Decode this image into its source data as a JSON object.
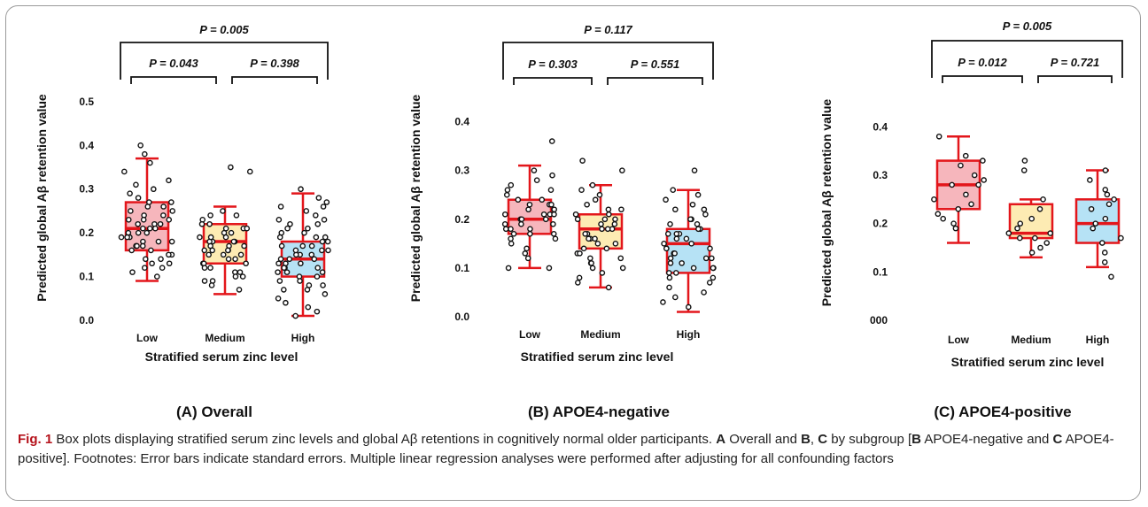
{
  "chart_data": [
    {
      "type": "boxplot",
      "subtitle": "(A) Overall",
      "ylabel": "Predicted global Aβ retention value",
      "xlabel": "Stratified serum zinc level",
      "categories": [
        "Low",
        "Medium",
        "High"
      ],
      "y_ticks": [
        "0.0",
        "0.1",
        "0.2",
        "0.3",
        "0.4",
        "0.5"
      ],
      "ylim": [
        0,
        0.52
      ],
      "boxes": [
        {
          "whisker_low": 0.09,
          "q1": 0.16,
          "median": 0.21,
          "q3": 0.27,
          "whisker_high": 0.37,
          "color": "#f5a9b0"
        },
        {
          "whisker_low": 0.06,
          "q1": 0.13,
          "median": 0.18,
          "q3": 0.22,
          "whisker_high": 0.26,
          "color": "#fde7a6"
        },
        {
          "whisker_low": 0.01,
          "q1": 0.1,
          "median": 0.14,
          "q3": 0.18,
          "whisker_high": 0.29,
          "color": "#a9ddf3"
        }
      ],
      "comparisons": [
        {
          "from": 0,
          "to": 2,
          "label": "P = 0.005",
          "level": "outer"
        },
        {
          "from": 0,
          "to": 1,
          "label": "P = 0.043",
          "level": "inner"
        },
        {
          "from": 1,
          "to": 2,
          "label": "P = 0.398",
          "level": "inner"
        }
      ],
      "points": [
        [
          0.32,
          0.34,
          0.36,
          0.4,
          0.38,
          0.3,
          0.29,
          0.28,
          0.27,
          0.27,
          0.26,
          0.25,
          0.25,
          0.24,
          0.24,
          0.23,
          0.23,
          0.22,
          0.22,
          0.22,
          0.21,
          0.21,
          0.21,
          0.2,
          0.2,
          0.2,
          0.19,
          0.19,
          0.18,
          0.18,
          0.18,
          0.17,
          0.17,
          0.16,
          0.16,
          0.15,
          0.15,
          0.14,
          0.14,
          0.13,
          0.13,
          0.12,
          0.11,
          0.1,
          0.12,
          0.31,
          0.26,
          0.23,
          0.19,
          0.17
        ],
        [
          0.34,
          0.35,
          0.25,
          0.24,
          0.23,
          0.22,
          0.22,
          0.21,
          0.21,
          0.2,
          0.2,
          0.19,
          0.19,
          0.19,
          0.18,
          0.18,
          0.18,
          0.17,
          0.17,
          0.17,
          0.16,
          0.16,
          0.16,
          0.15,
          0.15,
          0.14,
          0.14,
          0.13,
          0.13,
          0.12,
          0.12,
          0.11,
          0.11,
          0.1,
          0.1,
          0.09,
          0.09,
          0.08,
          0.07,
          0.21,
          0.18,
          0.15,
          0.13,
          0.24,
          0.16
        ],
        [
          0.3,
          0.28,
          0.27,
          0.26,
          0.25,
          0.24,
          0.23,
          0.22,
          0.22,
          0.21,
          0.21,
          0.2,
          0.2,
          0.19,
          0.19,
          0.18,
          0.18,
          0.17,
          0.17,
          0.16,
          0.16,
          0.15,
          0.15,
          0.14,
          0.14,
          0.13,
          0.13,
          0.12,
          0.12,
          0.11,
          0.11,
          0.1,
          0.1,
          0.09,
          0.09,
          0.08,
          0.08,
          0.07,
          0.07,
          0.06,
          0.05,
          0.04,
          0.03,
          0.02,
          0.01,
          0.19,
          0.17,
          0.15,
          0.13,
          0.11,
          0.23,
          0.26,
          0.12,
          0.14,
          0.16
        ]
      ]
    },
    {
      "type": "boxplot",
      "subtitle": "(B) APOE4-negative",
      "ylabel": "Predicted global Aβ retention value",
      "xlabel": "Stratified serum zinc level",
      "categories": [
        "Low",
        "Medium",
        "High"
      ],
      "y_ticks": [
        "0.0",
        "0.1",
        "0.2",
        "0.3",
        "0.4"
      ],
      "ylim": [
        0,
        0.45
      ],
      "boxes": [
        {
          "whisker_low": 0.1,
          "q1": 0.17,
          "median": 0.2,
          "q3": 0.24,
          "whisker_high": 0.31,
          "color": "#f5a9b0"
        },
        {
          "whisker_low": 0.06,
          "q1": 0.14,
          "median": 0.18,
          "q3": 0.21,
          "whisker_high": 0.27,
          "color": "#fde7a6"
        },
        {
          "whisker_low": 0.01,
          "q1": 0.09,
          "median": 0.15,
          "q3": 0.18,
          "whisker_high": 0.26,
          "color": "#a9ddf3"
        }
      ],
      "comparisons": [
        {
          "from": 0,
          "to": 2,
          "label": "P = 0.117",
          "level": "outer"
        },
        {
          "from": 0,
          "to": 1,
          "label": "P = 0.303",
          "level": "inner"
        },
        {
          "from": 1,
          "to": 2,
          "label": "P = 0.551",
          "level": "inner"
        }
      ],
      "points": [
        [
          0.36,
          0.3,
          0.28,
          0.27,
          0.26,
          0.25,
          0.24,
          0.24,
          0.23,
          0.23,
          0.22,
          0.22,
          0.21,
          0.21,
          0.21,
          0.2,
          0.2,
          0.2,
          0.19,
          0.19,
          0.18,
          0.18,
          0.18,
          0.17,
          0.17,
          0.16,
          0.16,
          0.15,
          0.14,
          0.13,
          0.12,
          0.1,
          0.1,
          0.29,
          0.26,
          0.22,
          0.19,
          0.17,
          0.23,
          0.21
        ],
        [
          0.32,
          0.3,
          0.27,
          0.26,
          0.25,
          0.24,
          0.23,
          0.22,
          0.22,
          0.21,
          0.21,
          0.2,
          0.2,
          0.19,
          0.19,
          0.18,
          0.18,
          0.17,
          0.17,
          0.16,
          0.16,
          0.15,
          0.15,
          0.14,
          0.14,
          0.13,
          0.12,
          0.12,
          0.11,
          0.1,
          0.1,
          0.09,
          0.08,
          0.07,
          0.06,
          0.2,
          0.18,
          0.16,
          0.13,
          0.11
        ],
        [
          0.3,
          0.26,
          0.25,
          0.24,
          0.23,
          0.22,
          0.21,
          0.2,
          0.2,
          0.19,
          0.19,
          0.18,
          0.18,
          0.17,
          0.17,
          0.16,
          0.16,
          0.15,
          0.15,
          0.14,
          0.14,
          0.13,
          0.13,
          0.12,
          0.12,
          0.11,
          0.11,
          0.1,
          0.1,
          0.09,
          0.09,
          0.08,
          0.08,
          0.07,
          0.06,
          0.05,
          0.04,
          0.03,
          0.02,
          0.17,
          0.14,
          0.12,
          0.1,
          0.22
        ]
      ]
    },
    {
      "type": "boxplot",
      "subtitle": "(C) APOE4-positive",
      "ylabel": "Predicted global Aβ retention value",
      "xlabel": "Stratified serum zinc level",
      "categories": [
        "Low",
        "Medium",
        "High"
      ],
      "y_ticks": [
        "000",
        "0.1",
        "0.2",
        "0.3",
        "0.4"
      ],
      "ylim": [
        0,
        0.45
      ],
      "boxes": [
        {
          "whisker_low": 0.16,
          "q1": 0.23,
          "median": 0.28,
          "q3": 0.33,
          "whisker_high": 0.38,
          "color": "#f5a9b0"
        },
        {
          "whisker_low": 0.13,
          "q1": 0.17,
          "median": 0.18,
          "q3": 0.24,
          "whisker_high": 0.25,
          "color": "#fde7a6"
        },
        {
          "whisker_low": 0.11,
          "q1": 0.16,
          "median": 0.2,
          "q3": 0.25,
          "whisker_high": 0.31,
          "color": "#a9ddf3"
        }
      ],
      "comparisons": [
        {
          "from": 0,
          "to": 2,
          "label": "P = 0.005",
          "level": "outer"
        },
        {
          "from": 0,
          "to": 1,
          "label": "P = 0.012",
          "level": "inner"
        },
        {
          "from": 1,
          "to": 2,
          "label": "P = 0.721",
          "level": "inner"
        }
      ],
      "points": [
        [
          0.38,
          0.34,
          0.33,
          0.32,
          0.3,
          0.29,
          0.28,
          0.28,
          0.26,
          0.25,
          0.24,
          0.23,
          0.22,
          0.21,
          0.2,
          0.19
        ],
        [
          0.33,
          0.31,
          0.25,
          0.23,
          0.21,
          0.2,
          0.19,
          0.18,
          0.18,
          0.17,
          0.17,
          0.16,
          0.15,
          0.14
        ],
        [
          0.31,
          0.29,
          0.27,
          0.26,
          0.25,
          0.24,
          0.23,
          0.21,
          0.2,
          0.19,
          0.17,
          0.16,
          0.14,
          0.12,
          0.09
        ]
      ]
    }
  ],
  "caption": {
    "fig_label": "Fig. 1",
    "text_1": "  Box plots displaying stratified serum zinc levels and global Aβ retentions in cognitively normal older participants. ",
    "a": "A",
    "text_2": " Overall and ",
    "b": "B",
    "text_3": ", ",
    "c": "C",
    "text_4": " by subgroup [",
    "b2": "B",
    "text_5": " APOE4-negative and ",
    "c2": "C",
    "text_6": " APOE4-positive]. Footnotes: Error bars indicate standard errors. Multiple linear regression analyses were performed after adjusting for all confounding factors"
  }
}
